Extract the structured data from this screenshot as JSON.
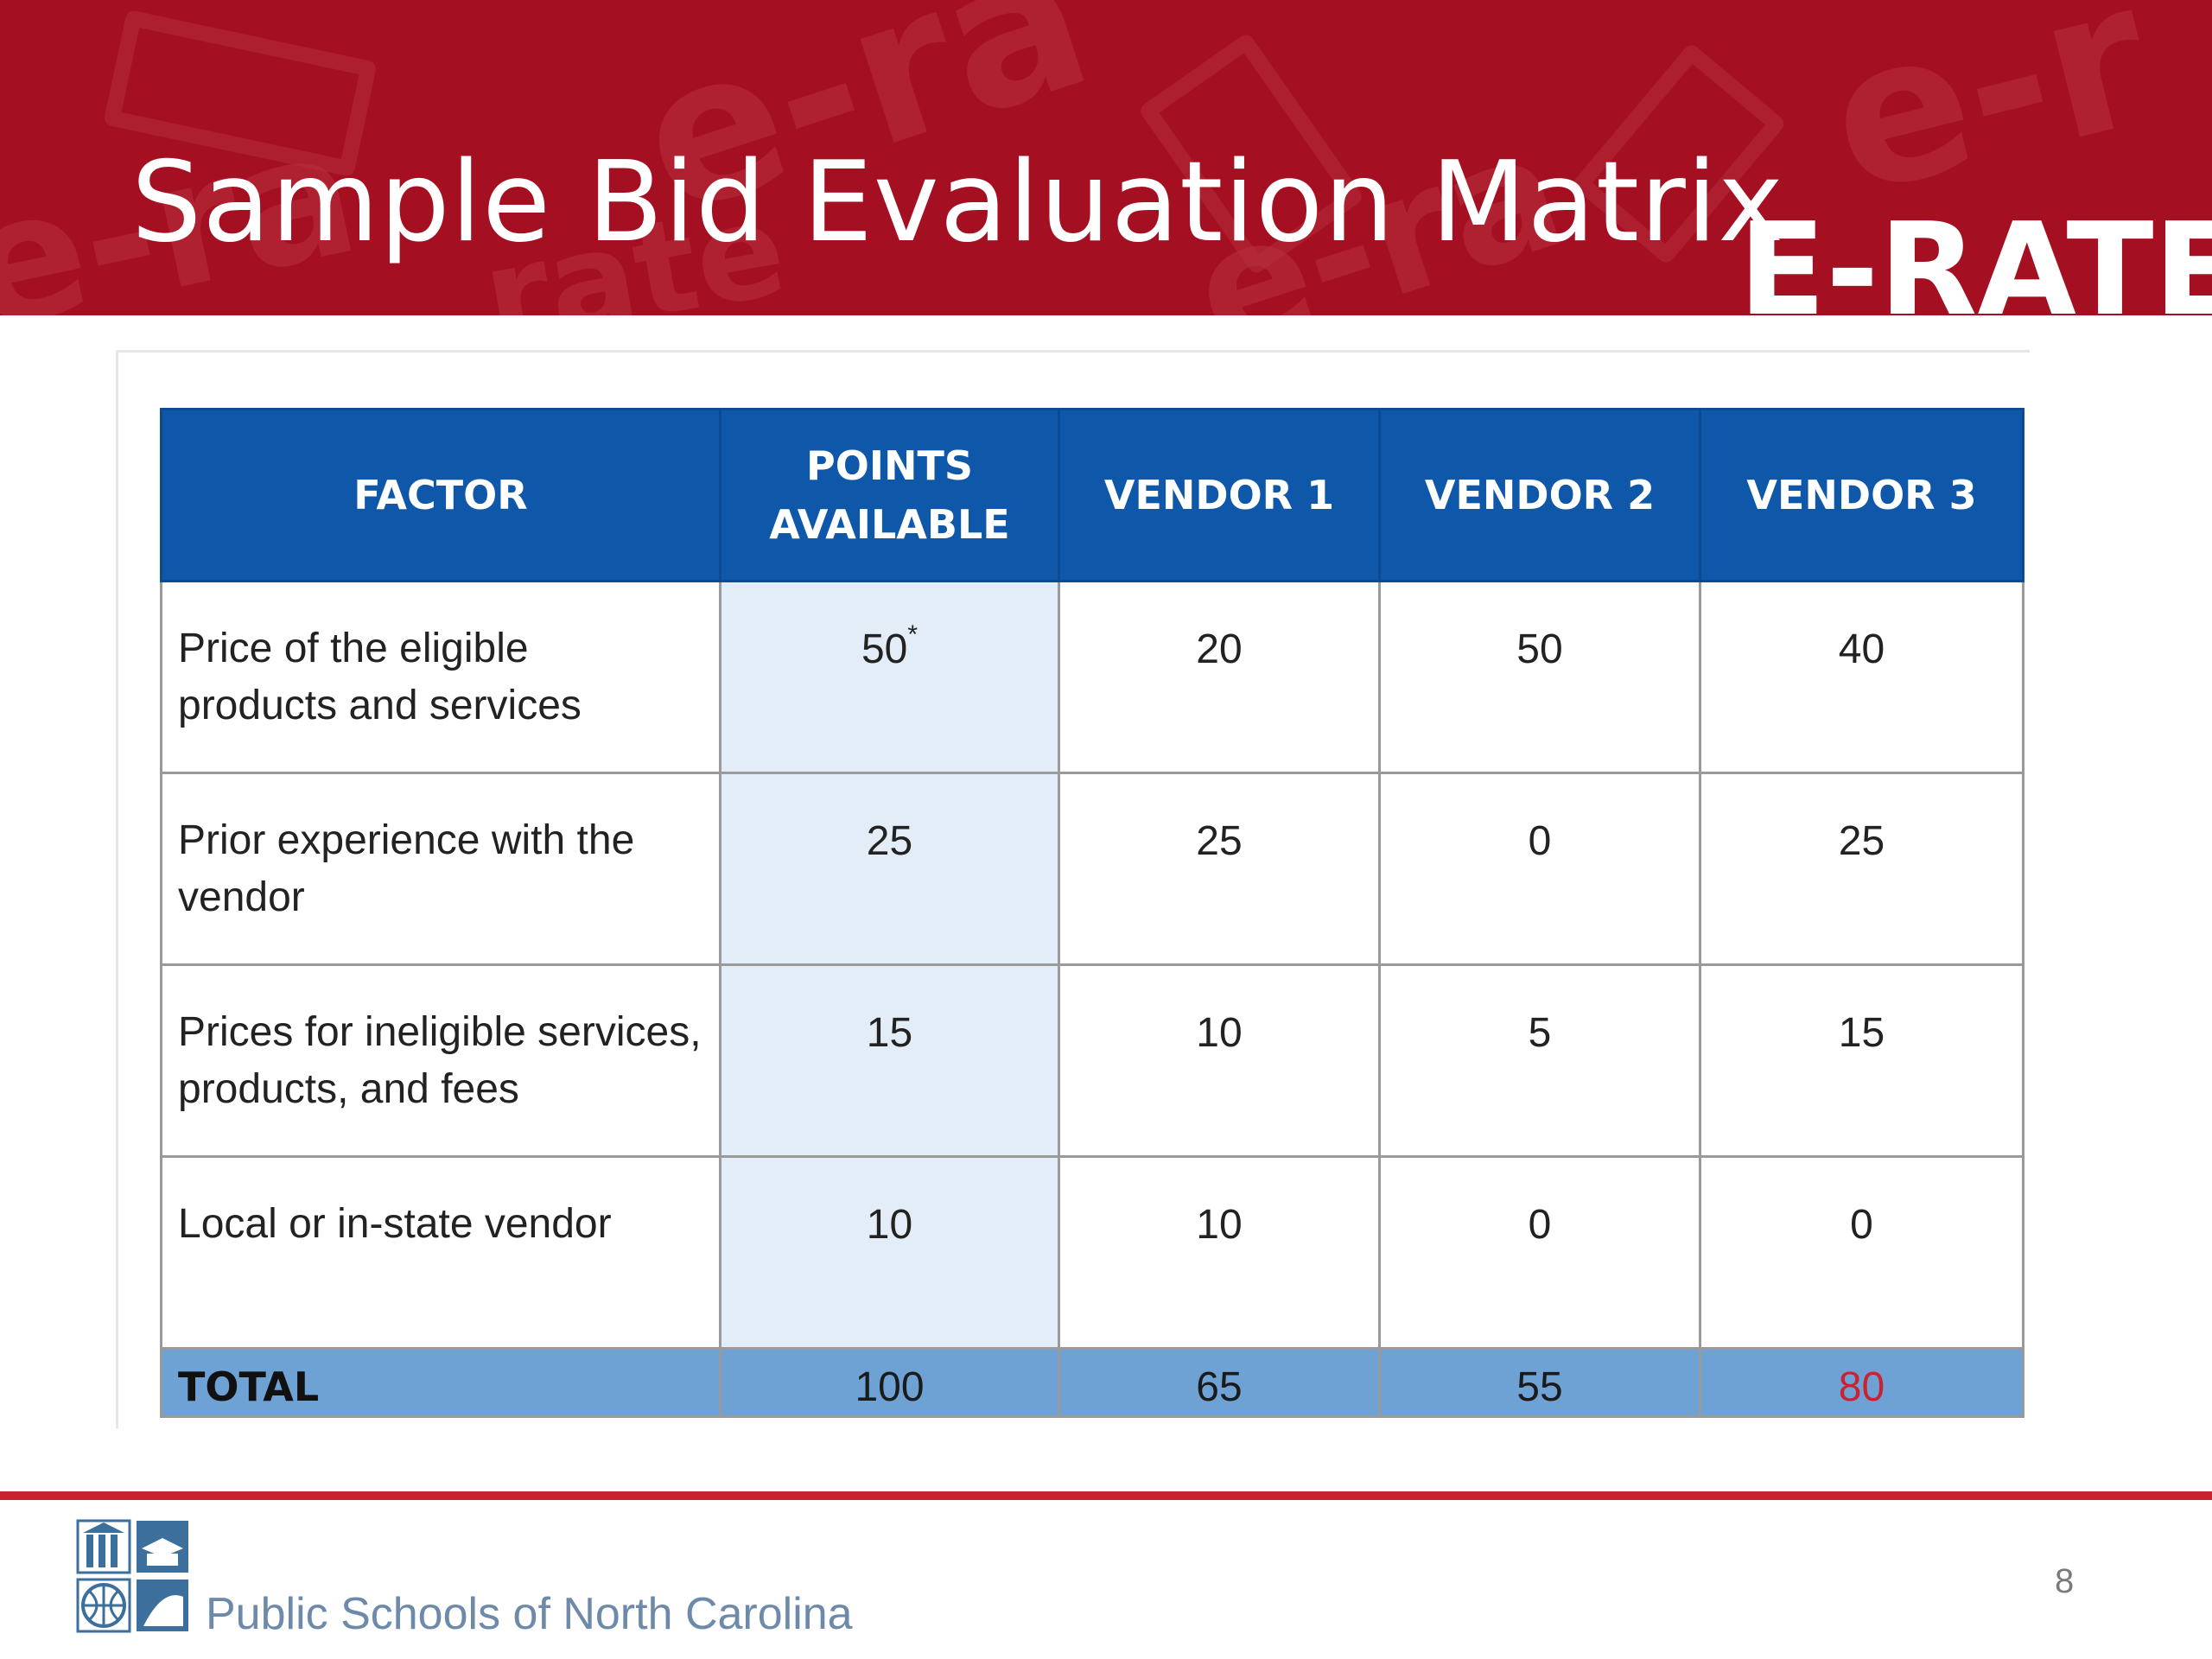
{
  "slide": {
    "title": "Sample Bid Evaluation Matrix",
    "brand": "E-RATE",
    "background_words": [
      "e-ra",
      "e-ra",
      "e-r",
      "rate",
      "e-ra"
    ]
  },
  "table": {
    "headers": {
      "factor": "FACTOR",
      "points_line1": "POINTS",
      "points_line2": "AVAILABLE",
      "vendor1": "VENDOR 1",
      "vendor2": "VENDOR 2",
      "vendor3": "VENDOR 3"
    },
    "rows": [
      {
        "factor_line1": "Price of the eligible",
        "factor_line2": "products and services",
        "points": "50",
        "points_mark": "*",
        "v1": "20",
        "v2": "50",
        "v3": "40"
      },
      {
        "factor_line1": "Prior experience with the",
        "factor_line2": "vendor",
        "points": "25",
        "v1": "25",
        "v2": "0",
        "v3": "25"
      },
      {
        "factor_line1": "Prices for ineligible services,",
        "factor_line2": "products, and fees",
        "points": "15",
        "v1": "10",
        "v2": "5",
        "v3": "15"
      },
      {
        "factor_line1": "Local or in-state vendor",
        "factor_line2": "",
        "points": "10",
        "v1": "10",
        "v2": "0",
        "v3": "0"
      }
    ],
    "total": {
      "label": "TOTAL",
      "points": "100",
      "v1": "65",
      "v2": "55",
      "v3": "80"
    },
    "colors": {
      "header_bg": "#0f57a8",
      "points_col_bg": "#e2edf8",
      "total_bg": "#6ea2d4",
      "winner_text": "#c8232f"
    }
  },
  "footer": {
    "org_name": "Public Schools of North Carolina",
    "page_number": "8",
    "logo_icon": "nc-dpi-logo-icon"
  }
}
